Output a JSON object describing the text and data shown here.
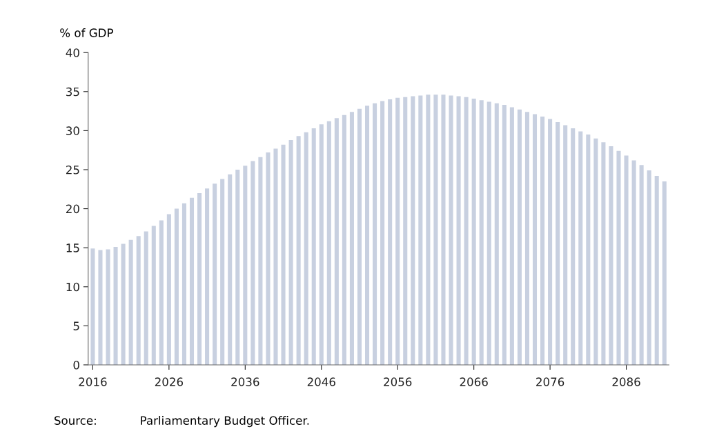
{
  "chart_data": {
    "type": "bar",
    "ylabel": "% of GDP",
    "categories": [
      "2016",
      null,
      null,
      null,
      null,
      null,
      null,
      null,
      null,
      null,
      "2026",
      null,
      null,
      null,
      null,
      null,
      null,
      null,
      null,
      null,
      "2036",
      null,
      null,
      null,
      null,
      null,
      null,
      null,
      null,
      null,
      "2046",
      null,
      null,
      null,
      null,
      null,
      null,
      null,
      null,
      null,
      "2056",
      null,
      null,
      null,
      null,
      null,
      null,
      null,
      null,
      null,
      "2066",
      null,
      null,
      null,
      null,
      null,
      null,
      null,
      null,
      null,
      "2076",
      null,
      null,
      null,
      null,
      null,
      null,
      null,
      null,
      null,
      "2086",
      null,
      null,
      null,
      null,
      null
    ],
    "values": [
      14.9,
      14.7,
      14.8,
      15.1,
      15.5,
      16.0,
      16.5,
      17.1,
      17.8,
      18.5,
      19.3,
      20.0,
      20.7,
      21.4,
      22.0,
      22.6,
      23.2,
      23.8,
      24.4,
      25.0,
      25.5,
      26.1,
      26.6,
      27.2,
      27.7,
      28.2,
      28.8,
      29.3,
      29.8,
      30.3,
      30.8,
      31.2,
      31.6,
      32.0,
      32.4,
      32.8,
      33.2,
      33.5,
      33.8,
      34.0,
      34.2,
      34.3,
      34.4,
      34.5,
      34.6,
      34.6,
      34.6,
      34.5,
      34.4,
      34.3,
      34.1,
      33.9,
      33.7,
      33.5,
      33.3,
      33.0,
      32.7,
      32.4,
      32.1,
      31.8,
      31.5,
      31.1,
      30.7,
      30.3,
      29.9,
      29.5,
      29.0,
      28.5,
      28.0,
      27.4,
      26.8,
      26.2,
      25.6,
      24.9,
      24.2,
      23.5
    ],
    "color": "#c8d0e0",
    "ylim": [
      0,
      40
    ],
    "yticks": [
      0,
      5,
      10,
      15,
      20,
      25,
      30,
      35,
      40
    ],
    "grid": false,
    "legend": false,
    "annotations": [
      "Source:",
      "Parliamentary Budget Officer."
    ]
  }
}
